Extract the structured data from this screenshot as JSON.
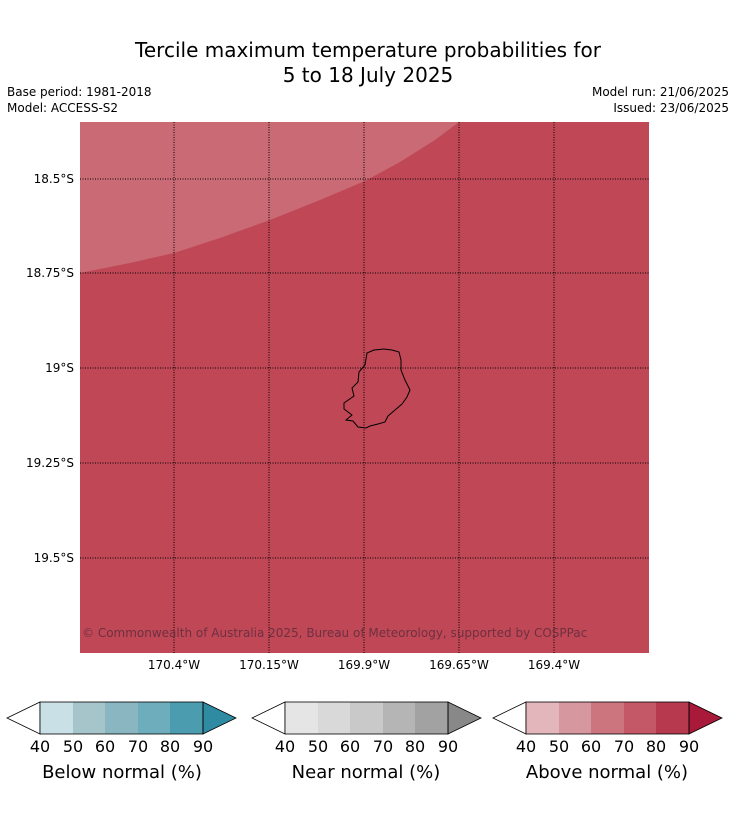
{
  "header": {
    "title_line1": "Tercile maximum temperature probabilities for",
    "title_line2": "5 to 18 July 2025",
    "base_period": "Base period: 1981-2018",
    "model": "Model: ACCESS-S2",
    "model_run": "Model run: 21/06/2025",
    "issued": "Issued: 23/06/2025"
  },
  "map": {
    "lat_labels": [
      "18.5°S",
      "18.75°S",
      "19°S",
      "19.25°S",
      "19.5°S"
    ],
    "lon_labels": [
      "170.4°W",
      "170.15°W",
      "169.9°W",
      "169.65°W",
      "169.4°W"
    ],
    "credit": "© Commonwealth of Australia 2025, Bureau of Meteorology, supported by COSPPac",
    "region_colors": {
      "above_70_80": "#c04756",
      "above_60_70": "#c96a74"
    }
  },
  "legends": [
    {
      "title": "Below normal (%)",
      "ticks": [
        "40",
        "50",
        "60",
        "70",
        "80",
        "90"
      ],
      "colors": [
        "#c8e0e6",
        "#a6c5cb",
        "#8ab6c1",
        "#6eaebc",
        "#4b9caf",
        "#2f8ba1"
      ]
    },
    {
      "title": "Near normal (%)",
      "ticks": [
        "40",
        "50",
        "60",
        "70",
        "80",
        "90"
      ],
      "colors": [
        "#e5e5e5",
        "#d9d9d9",
        "#c9c9c9",
        "#b5b5b5",
        "#a2a2a2",
        "#888888"
      ]
    },
    {
      "title": "Above normal (%)",
      "ticks": [
        "40",
        "50",
        "60",
        "70",
        "80",
        "90"
      ],
      "colors": [
        "#e2b6bb",
        "#d7979e",
        "#cd757e",
        "#c45867",
        "#b6394d",
        "#a8193a"
      ]
    }
  ]
}
